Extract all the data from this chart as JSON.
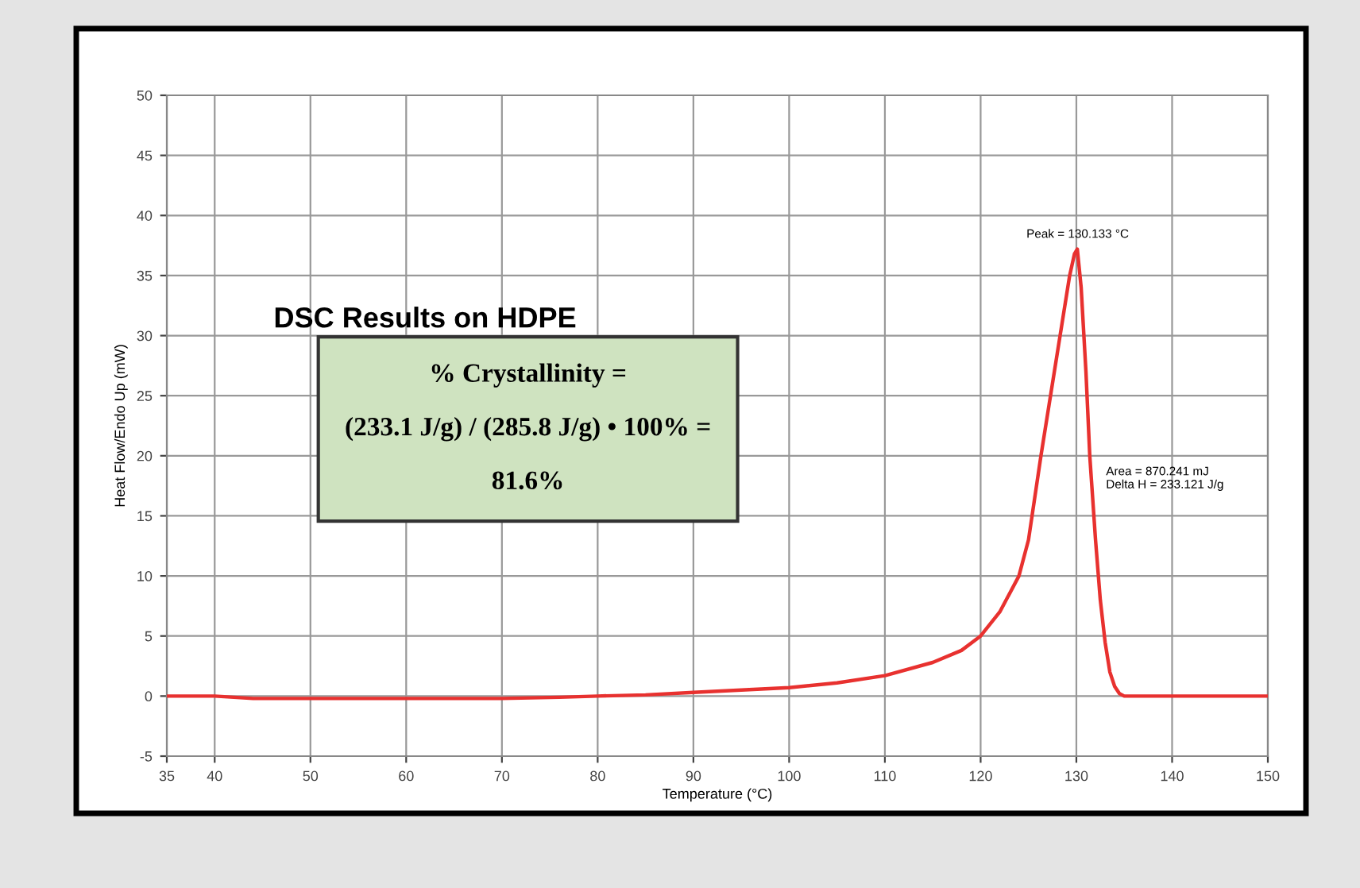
{
  "chart_data": {
    "type": "line",
    "title": "DSC Results on HDPE",
    "xlabel": "Temperature (°C)",
    "ylabel": "Heat Flow/Endo Up (mW)",
    "x": [
      35,
      40,
      44,
      50,
      60,
      70,
      76,
      80,
      85,
      90,
      95,
      100,
      105,
      110,
      115,
      118,
      120,
      122,
      124,
      125,
      126.3,
      127.5,
      128.5,
      129.3,
      129.8,
      130.1,
      130.5,
      131,
      131.4,
      132,
      132.5,
      133,
      133.5,
      134,
      134.5,
      135,
      137,
      150
    ],
    "series": [
      {
        "color": "#e8312f",
        "values": [
          0,
          0,
          -0.2,
          -0.2,
          -0.2,
          -0.2,
          -0.1,
          0,
          0.1,
          0.3,
          0.5,
          0.7,
          1.1,
          1.7,
          2.8,
          3.8,
          5,
          7,
          10,
          13,
          20,
          26,
          31,
          35,
          36.8,
          37.2,
          34,
          27,
          20,
          13,
          8,
          4.5,
          2,
          0.8,
          0.2,
          0,
          0,
          0
        ]
      }
    ],
    "xlim": [
      35,
      150
    ],
    "xticks": [
      35,
      40,
      50,
      60,
      70,
      80,
      90,
      100,
      110,
      120,
      130,
      140,
      150
    ],
    "ylim": [
      -5,
      50
    ],
    "yticks": [
      -5,
      0,
      5,
      10,
      15,
      20,
      25,
      30,
      35,
      40,
      45,
      50
    ],
    "grid": true,
    "line_style": "solid",
    "marker": "none",
    "annotations": [
      {
        "text": "Peak = 130.133 °C",
        "x": 130.133,
        "y": 37.2
      },
      "Area = 870.241 mJ\nDelta H = 233.121 J/g",
      "% Crystallinity =\n\n(233.1 J/g) / (285.8 J/g) • 100% =\n\n81.6%"
    ]
  }
}
